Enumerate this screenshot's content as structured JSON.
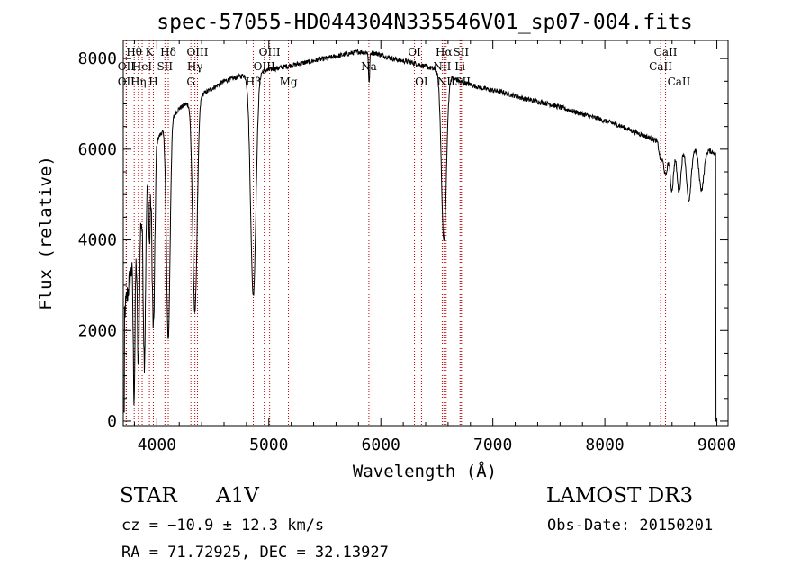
{
  "chart_data": {
    "type": "line",
    "title": "spec-57055-HD044304N335546V01_sp07-004.fits",
    "xlabel": "Wavelength (Å)",
    "ylabel": "Flux (relative)",
    "xlim": [
      3700,
      9100
    ],
    "ylim": [
      -100,
      8400
    ],
    "xticks": [
      4000,
      5000,
      6000,
      7000,
      8000,
      9000
    ],
    "yticks": [
      0,
      2000,
      4000,
      6000,
      8000
    ],
    "continuum": {
      "x": [
        3700,
        3800,
        3900,
        4000,
        4100,
        4200,
        4400,
        4600,
        4800,
        5000,
        5200,
        5400,
        5600,
        5800,
        5950,
        6100,
        6300,
        6500,
        6700,
        6900,
        7100,
        7300,
        7500,
        7700,
        7900,
        8100,
        8300,
        8500,
        8700,
        8900,
        9000
      ],
      "y": [
        2200,
        3800,
        5000,
        6200,
        6600,
        6900,
        7200,
        7500,
        7650,
        7750,
        7850,
        7950,
        8050,
        8150,
        8120,
        8000,
        7900,
        7750,
        7500,
        7350,
        7250,
        7100,
        7000,
        6850,
        6700,
        6550,
        6350,
        6150,
        6050,
        6000,
        5900
      ]
    },
    "absorption_lines": [
      {
        "center": 3797,
        "depth": 3200,
        "width": 8
      },
      {
        "center": 3835,
        "depth": 3100,
        "width": 9
      },
      {
        "center": 3889,
        "depth": 3500,
        "width": 10
      },
      {
        "center": 3934,
        "depth": 1500,
        "width": 6
      },
      {
        "center": 3970,
        "depth": 3800,
        "width": 12
      },
      {
        "center": 4102,
        "depth": 4800,
        "width": 16
      },
      {
        "center": 4340,
        "depth": 4700,
        "width": 20
      },
      {
        "center": 4861,
        "depth": 4900,
        "width": 24
      },
      {
        "center": 5895,
        "depth": 700,
        "width": 5
      },
      {
        "center": 6563,
        "depth": 3700,
        "width": 22
      },
      {
        "center": 8498,
        "depth": 350,
        "width": 14
      },
      {
        "center": 8542,
        "depth": 700,
        "width": 18
      },
      {
        "center": 8598,
        "depth": 1000,
        "width": 16
      },
      {
        "center": 8662,
        "depth": 1000,
        "width": 18
      },
      {
        "center": 8750,
        "depth": 1200,
        "width": 20
      },
      {
        "center": 8863,
        "depth": 900,
        "width": 22
      }
    ],
    "line_markers": [
      {
        "x": 3727,
        "label": "OII",
        "row": 2
      },
      {
        "x": 3727,
        "label": "OII",
        "row": 3
      },
      {
        "x": 3798,
        "label": "Hθ",
        "row": 1
      },
      {
        "x": 3835,
        "label": "Hη",
        "row": 3
      },
      {
        "x": 3869,
        "label": "HeI",
        "row": 2
      },
      {
        "x": 3934,
        "label": "K",
        "row": 1
      },
      {
        "x": 3969,
        "label": "H",
        "row": 3
      },
      {
        "x": 4072,
        "label": "SII",
        "row": 2
      },
      {
        "x": 4102,
        "label": "Hδ",
        "row": 1
      },
      {
        "x": 4304,
        "label": "G",
        "row": 3
      },
      {
        "x": 4340,
        "label": "Hγ",
        "row": 2
      },
      {
        "x": 4363,
        "label": "OIII",
        "row": 1
      },
      {
        "x": 4861,
        "label": "Hβ",
        "row": 3
      },
      {
        "x": 4959,
        "label": "OIII",
        "row": 2
      },
      {
        "x": 5007,
        "label": "OIII",
        "row": 1
      },
      {
        "x": 5175,
        "label": "Mg",
        "row": 3
      },
      {
        "x": 5893,
        "label": "Na",
        "row": 2
      },
      {
        "x": 6300,
        "label": "OI",
        "row": 1
      },
      {
        "x": 6363,
        "label": "OI",
        "row": 3
      },
      {
        "x": 6548,
        "label": "NII",
        "row": 2
      },
      {
        "x": 6563,
        "label": "Hα",
        "row": 1
      },
      {
        "x": 6583,
        "label": "NII",
        "row": 3
      },
      {
        "x": 6707,
        "label": "Li",
        "row": 2
      },
      {
        "x": 6716,
        "label": "SII",
        "row": 1
      },
      {
        "x": 6731,
        "label": "SII",
        "row": 3
      },
      {
        "x": 8498,
        "label": "CaII",
        "row": 2
      },
      {
        "x": 8542,
        "label": "CaII",
        "row": 1
      },
      {
        "x": 8662,
        "label": "CaII",
        "row": 3
      }
    ]
  },
  "info": {
    "class_label": "STAR",
    "subclass": "A1V",
    "survey": "LAMOST DR3",
    "cz": "cz = −10.9 ± 12.3 km/s",
    "obs_date": "Obs-Date: 20150201",
    "coords": "RA =  71.72925, DEC =  32.13927"
  }
}
